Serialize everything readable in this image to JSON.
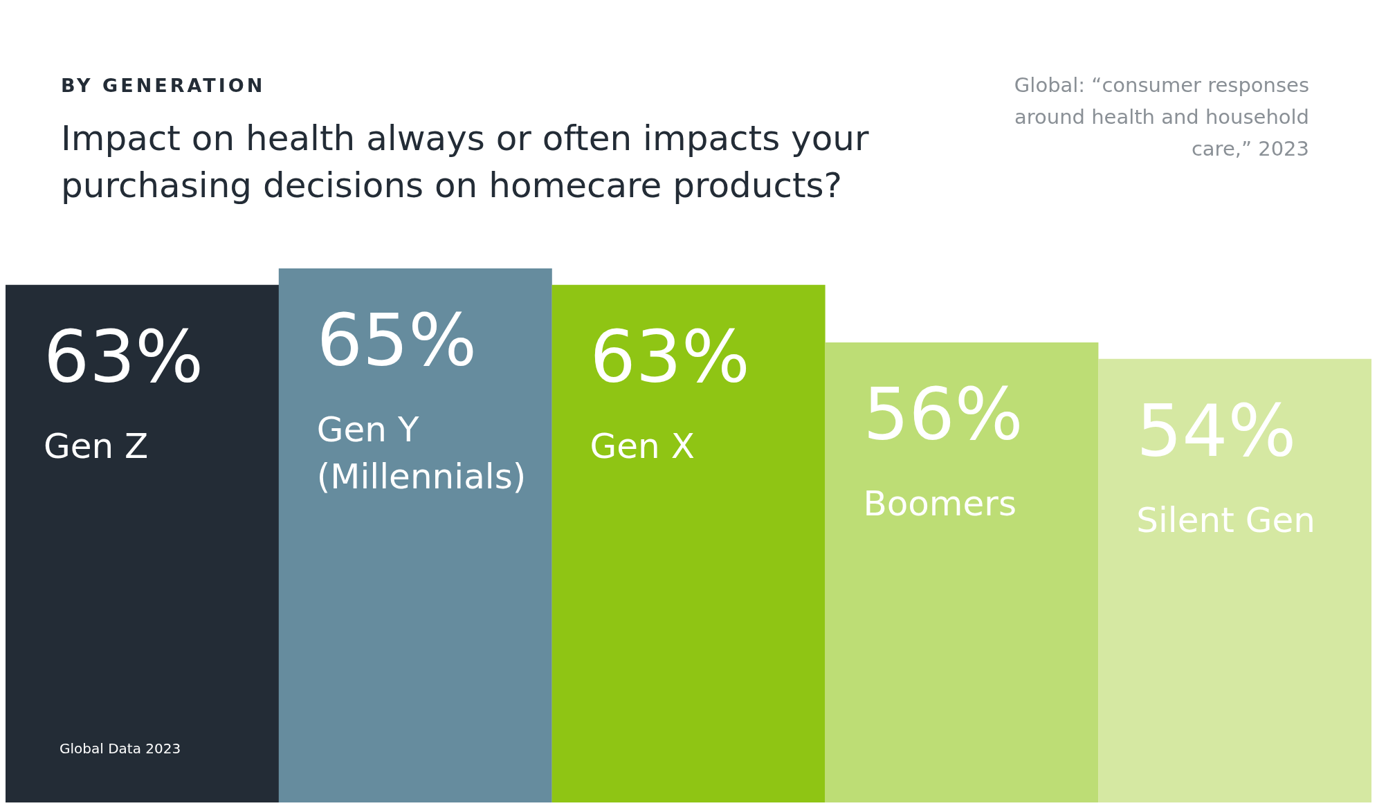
{
  "chart_data": {
    "type": "bar",
    "subtitle": "BY GENERATION",
    "title": "Impact on health always or often impacts your purchasing decisions on homecare products?",
    "categories": [
      "Gen Z",
      "Gen Y (Millennials)",
      "Gen X",
      "Boomers",
      "Silent Gen"
    ],
    "values": [
      63,
      65,
      63,
      56,
      54
    ],
    "value_labels": [
      "63%",
      "65%",
      "63%",
      "56%",
      "54%"
    ],
    "colors": [
      "#232c36",
      "#668c9e",
      "#8fc514",
      "#bddd75",
      "#d5e8a2"
    ],
    "annotations": [
      "Global: “consumer responses around health and household care,” 2023",
      "Global Data 2023"
    ]
  }
}
